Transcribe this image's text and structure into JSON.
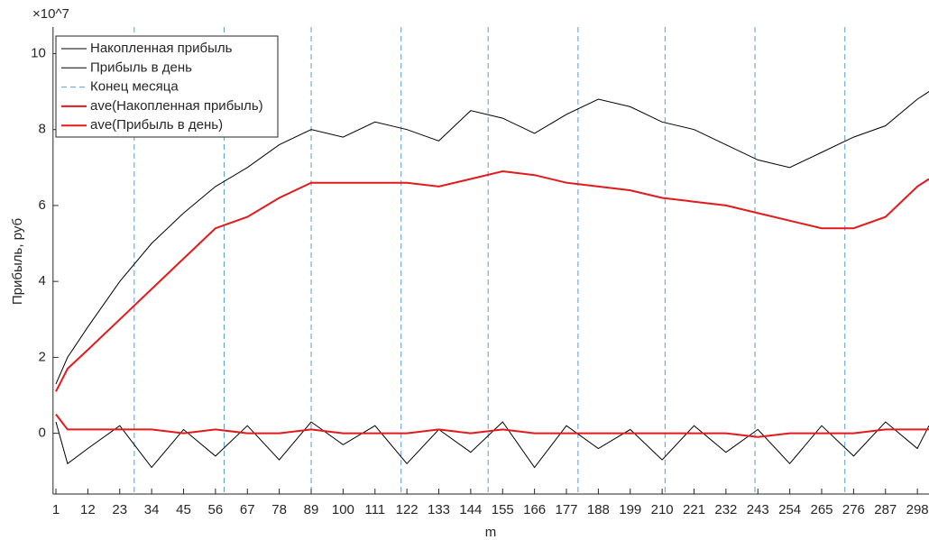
{
  "chart_data": {
    "type": "line",
    "exponent_label": "×10^7",
    "y_label": "Прибыль, руб",
    "x_label": "m",
    "x": [
      1,
      5,
      12,
      23,
      34,
      45,
      56,
      67,
      78,
      89,
      100,
      111,
      122,
      133,
      144,
      155,
      166,
      177,
      188,
      199,
      210,
      221,
      232,
      243,
      254,
      265,
      276,
      287,
      298,
      302
    ],
    "series": [
      {
        "name": "Накопленная прибыль",
        "color": "#000000",
        "width": 1,
        "values": [
          1.3,
          2.0,
          2.8,
          4.0,
          5.0,
          5.8,
          6.5,
          7.0,
          7.6,
          8.0,
          7.8,
          8.2,
          8.0,
          7.7,
          8.5,
          8.3,
          7.9,
          8.4,
          8.8,
          8.6,
          8.2,
          8.0,
          7.6,
          7.2,
          7.0,
          7.4,
          7.8,
          8.1,
          8.8,
          9.0
        ]
      },
      {
        "name": "Прибыль в день",
        "color": "#000000",
        "width": 1,
        "values": [
          0.3,
          -0.8,
          -0.4,
          0.2,
          -0.9,
          0.1,
          -0.6,
          0.2,
          -0.7,
          0.3,
          -0.3,
          0.2,
          -0.8,
          0.1,
          -0.5,
          0.3,
          -0.9,
          0.2,
          -0.4,
          0.1,
          -0.7,
          0.2,
          -0.5,
          0.1,
          -0.8,
          0.2,
          -0.6,
          0.3,
          -0.4,
          0.2
        ]
      },
      {
        "name": "ave(Накопленная прибыль)",
        "color": "#e31a1c",
        "width": 2,
        "values": [
          1.1,
          1.7,
          2.2,
          3.0,
          3.8,
          4.6,
          5.4,
          5.7,
          6.2,
          6.6,
          6.6,
          6.6,
          6.6,
          6.5,
          6.7,
          6.9,
          6.8,
          6.6,
          6.5,
          6.4,
          6.2,
          6.1,
          6.0,
          5.8,
          5.6,
          5.4,
          5.4,
          5.7,
          6.5,
          6.7
        ]
      },
      {
        "name": "ave(Прибыль в день)",
        "color": "#e31a1c",
        "width": 2,
        "values": [
          0.5,
          0.1,
          0.1,
          0.1,
          0.1,
          0.0,
          0.1,
          0.0,
          0.0,
          0.1,
          0.0,
          0.0,
          0.0,
          0.1,
          0.0,
          0.1,
          0.0,
          0.0,
          0.0,
          0.0,
          0.0,
          0.0,
          0.0,
          -0.1,
          0.0,
          0.0,
          0.0,
          0.1,
          0.1,
          0.1
        ]
      }
    ],
    "month_ends": {
      "name": "Конец месяца",
      "color": "#5b9bd5",
      "x": [
        28,
        59,
        89,
        120,
        150,
        181,
        211,
        242,
        273
      ]
    },
    "legend_position": "top-left",
    "xlim": [
      0,
      302
    ],
    "xticks": [
      1,
      12,
      23,
      34,
      45,
      56,
      67,
      78,
      89,
      100,
      111,
      122,
      133,
      144,
      155,
      166,
      177,
      188,
      199,
      210,
      221,
      232,
      243,
      254,
      265,
      276,
      287,
      298
    ],
    "ylim": [
      -1.6,
      10.7
    ],
    "yticks": [
      0,
      2,
      4,
      6,
      8,
      10
    ]
  }
}
